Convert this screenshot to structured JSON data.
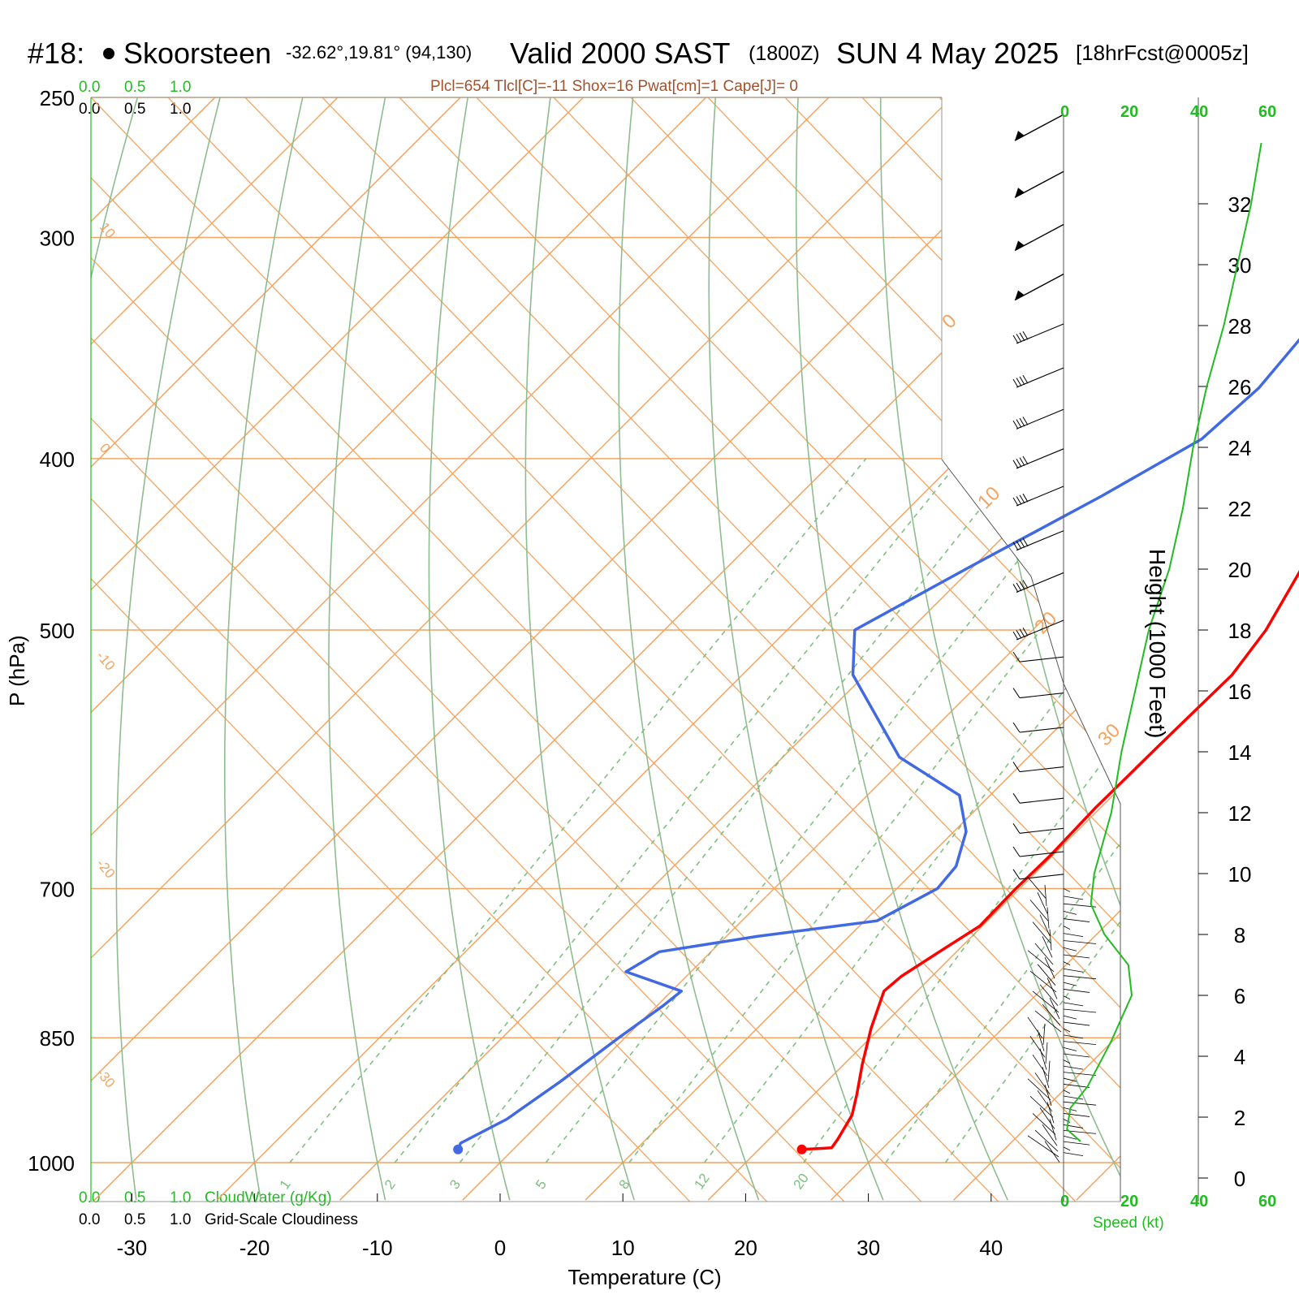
{
  "header": {
    "station_id": "#18:",
    "station_name": "Skoorsteen",
    "coords": "-32.62°,19.81° (94,130)",
    "valid": "Valid 2000 SAST",
    "zulu": "(1800Z)",
    "date": "SUN 4 May 2025",
    "forecast": "[18hrFcst@0005z]"
  },
  "stats_line": "Plcl=654 Tlcl[C]=-11 Shox=16 Pwat[cm]=1 Cape[J]= 0",
  "axes": {
    "pressure_label": "P (hPa)",
    "temperature_label": "Temperature (C)",
    "height_label": "Height (1000 Feet)",
    "speed_label": "Speed (kt)",
    "pressure_ticks": [
      "250",
      "300",
      "400",
      "500",
      "700",
      "850",
      "1000"
    ],
    "temperature_ticks": [
      "-30",
      "-20",
      "-10",
      "0",
      "10",
      "20",
      "30",
      "40"
    ],
    "height_ticks": [
      "0",
      "2",
      "4",
      "6",
      "8",
      "10",
      "12",
      "14",
      "16",
      "18",
      "20",
      "22",
      "24",
      "26",
      "28",
      "30",
      "32"
    ],
    "speed_ticks": [
      "0",
      "20",
      "40",
      "60"
    ],
    "cloud_ticks": [
      "0.0",
      "0.5",
      "1.0"
    ],
    "cloudwater_label": "CloudWater (g/Kg)",
    "cloudiness_label": "Grid-Scale Cloudiness"
  },
  "colors": {
    "temperature": "#ff0000",
    "dewpoint": "#4169e1",
    "isotherm": "#f4a460",
    "adiabat": "#8fbc8f",
    "mixing_ratio": "#7fbf7f",
    "wind_speed": "#22bb22"
  },
  "isotherm_labels": [
    "10",
    "0",
    "-10",
    "-20",
    "-30",
    "0",
    "10",
    "20",
    "30"
  ],
  "mixing_ratio_labels": [
    "1",
    "2",
    "3",
    "5",
    "8",
    "12",
    "20"
  ],
  "chart_data": {
    "type": "line",
    "subtype": "skew-T log-p sounding",
    "xlim": [
      -33,
      36
    ],
    "pressure_range_hpa": [
      1000,
      250
    ],
    "series": [
      {
        "name": "temperature",
        "points": [
          {
            "p": 983,
            "t": 23.5
          },
          {
            "p": 981,
            "t": 25.8
          },
          {
            "p": 970,
            "t": 25.6
          },
          {
            "p": 940,
            "t": 24.8
          },
          {
            "p": 915,
            "t": 23.5
          },
          {
            "p": 880,
            "t": 21.5
          },
          {
            "p": 840,
            "t": 19.3
          },
          {
            "p": 800,
            "t": 17.3
          },
          {
            "p": 785,
            "t": 17.5
          },
          {
            "p": 760,
            "t": 18.6
          },
          {
            "p": 735,
            "t": 19.8
          },
          {
            "p": 700,
            "t": 19.7
          },
          {
            "p": 670,
            "t": 19.8
          },
          {
            "p": 630,
            "t": 19.6
          },
          {
            "p": 580,
            "t": 19.7
          },
          {
            "p": 530,
            "t": 19.9
          },
          {
            "p": 500,
            "t": 19.0
          },
          {
            "p": 460,
            "t": 16.8
          },
          {
            "p": 420,
            "t": 13.8
          },
          {
            "p": 390,
            "t": 11.5
          },
          {
            "p": 370,
            "t": 10.2
          },
          {
            "p": 340,
            "t": 8.3
          },
          {
            "p": 300,
            "t": 5.6
          },
          {
            "p": 260,
            "t": 2.5
          }
        ]
      },
      {
        "name": "dewpoint",
        "points": [
          {
            "p": 983,
            "t": -4.5
          },
          {
            "p": 975,
            "t": -4.8
          },
          {
            "p": 945,
            "t": -3.0
          },
          {
            "p": 900,
            "t": -1.7
          },
          {
            "p": 850,
            "t": -0.5
          },
          {
            "p": 815,
            "t": 0.5
          },
          {
            "p": 800,
            "t": 0.8
          },
          {
            "p": 780,
            "t": -5.3
          },
          {
            "p": 760,
            "t": -4.2
          },
          {
            "p": 745,
            "t": 2.5
          },
          {
            "p": 730,
            "t": 11.0
          },
          {
            "p": 700,
            "t": 13.3
          },
          {
            "p": 680,
            "t": 13.0
          },
          {
            "p": 650,
            "t": 11.0
          },
          {
            "p": 620,
            "t": 7.5
          },
          {
            "p": 590,
            "t": -0.5
          },
          {
            "p": 530,
            "t": -11.0
          },
          {
            "p": 500,
            "t": -14.5
          },
          {
            "p": 460,
            "t": -10.2
          },
          {
            "p": 420,
            "t": -5.3
          },
          {
            "p": 390,
            "t": -1.8
          },
          {
            "p": 365,
            "t": -1.3
          },
          {
            "p": 340,
            "t": -2.0
          },
          {
            "p": 310,
            "t": -5.0
          },
          {
            "p": 280,
            "t": -8.5
          },
          {
            "p": 258,
            "t": -11.5
          }
        ]
      },
      {
        "name": "wind speed",
        "points": [
          {
            "h": 1.2,
            "spd": 5
          },
          {
            "h": 1.6,
            "spd": 1
          },
          {
            "h": 2.3,
            "spd": 2
          },
          {
            "h": 3.0,
            "spd": 7
          },
          {
            "h": 4.5,
            "spd": 14
          },
          {
            "h": 6.0,
            "spd": 20
          },
          {
            "h": 7.0,
            "spd": 19
          },
          {
            "h": 8.0,
            "spd": 12
          },
          {
            "h": 9.0,
            "spd": 8
          },
          {
            "h": 10.0,
            "spd": 9
          },
          {
            "h": 12.0,
            "spd": 14
          },
          {
            "h": 14.0,
            "spd": 17
          },
          {
            "h": 16.0,
            "spd": 21
          },
          {
            "h": 18.0,
            "spd": 25
          },
          {
            "h": 20.0,
            "spd": 31
          },
          {
            "h": 22.0,
            "spd": 35
          },
          {
            "h": 24.0,
            "spd": 38
          },
          {
            "h": 26.0,
            "spd": 42
          },
          {
            "h": 28.0,
            "spd": 47
          },
          {
            "h": 30.0,
            "spd": 51
          },
          {
            "h": 32.0,
            "spd": 55
          },
          {
            "h": 34.0,
            "spd": 58
          }
        ]
      }
    ]
  }
}
